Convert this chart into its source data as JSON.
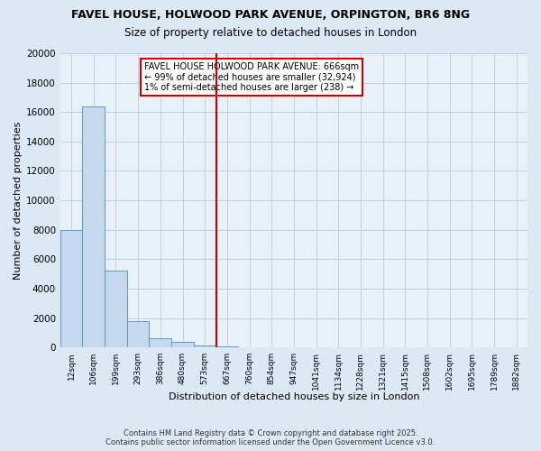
{
  "title_line1": "FAVEL HOUSE, HOLWOOD PARK AVENUE, ORPINGTON, BR6 8NG",
  "title_line2": "Size of property relative to detached houses in London",
  "xlabel": "Distribution of detached houses by size in London",
  "ylabel": "Number of detached properties",
  "categories": [
    "12sqm",
    "106sqm",
    "199sqm",
    "293sqm",
    "386sqm",
    "480sqm",
    "573sqm",
    "667sqm",
    "760sqm",
    "854sqm",
    "947sqm",
    "1041sqm",
    "1134sqm",
    "1228sqm",
    "1321sqm",
    "1415sqm",
    "1508sqm",
    "1602sqm",
    "1695sqm",
    "1789sqm",
    "1882sqm"
  ],
  "values": [
    8000,
    16400,
    5200,
    1800,
    600,
    400,
    150,
    100,
    0,
    0,
    0,
    0,
    0,
    0,
    0,
    0,
    0,
    0,
    0,
    0,
    0
  ],
  "bar_color": "#c5d8ed",
  "bar_edge_color": "#5b9ac8",
  "vline_color": "#cc0000",
  "vline_x_index": 6,
  "ylim": [
    0,
    20000
  ],
  "yticks": [
    0,
    2000,
    4000,
    6000,
    8000,
    10000,
    12000,
    14000,
    16000,
    18000,
    20000
  ],
  "annotation_text": "FAVEL HOUSE HOLWOOD PARK AVENUE: 666sqm\n← 99% of detached houses are smaller (32,924)\n1% of semi-detached houses are larger (238) →",
  "annotation_box_color": "white",
  "annotation_box_edge": "#cc0000",
  "background_color": "#dde8f5",
  "plot_bg_color": "#e8f0f8",
  "grid_color": "#c0cfe0",
  "footer_line1": "Contains HM Land Registry data © Crown copyright and database right 2025.",
  "footer_line2": "Contains public sector information licensed under the Open Government Licence v3.0."
}
